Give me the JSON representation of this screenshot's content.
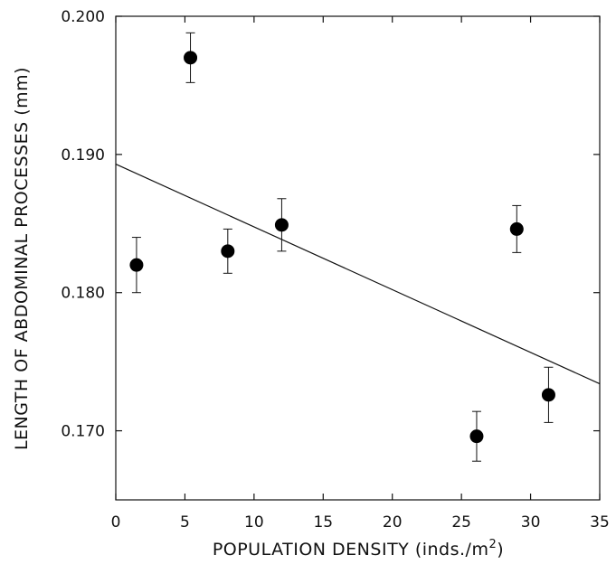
{
  "chart_data": {
    "type": "scatter",
    "title": "",
    "xlabel": "POPULATION DENSITY (inds./m",
    "xlabel_superscript": "2",
    "xlabel_suffix": ")",
    "ylabel": "LENGTH OF ABDOMINAL PROCESSES (mm)",
    "xlim": [
      0,
      35
    ],
    "ylim": [
      0.165,
      0.2
    ],
    "x_ticks": [
      0,
      5,
      10,
      15,
      20,
      25,
      30,
      35
    ],
    "x_tick_labels": [
      "0",
      "5",
      "10",
      "15",
      "20",
      "25",
      "30",
      "35"
    ],
    "y_ticks": [
      0.17,
      0.18,
      0.19,
      0.2
    ],
    "y_tick_labels": [
      "0.170",
      "0.180",
      "0.190",
      "0.200"
    ],
    "grid": false,
    "points": [
      {
        "x": 1.5,
        "y": 0.182,
        "err": 0.002
      },
      {
        "x": 5.4,
        "y": 0.197,
        "err": 0.0018
      },
      {
        "x": 8.1,
        "y": 0.183,
        "err": 0.0016
      },
      {
        "x": 12.0,
        "y": 0.1849,
        "err": 0.0019
      },
      {
        "x": 26.1,
        "y": 0.1696,
        "err": 0.0018
      },
      {
        "x": 29.0,
        "y": 0.1846,
        "err": 0.0017
      },
      {
        "x": 31.3,
        "y": 0.1726,
        "err": 0.002
      }
    ],
    "trend_line": {
      "x": [
        0,
        35
      ],
      "y": [
        0.1893,
        0.1734
      ]
    }
  }
}
